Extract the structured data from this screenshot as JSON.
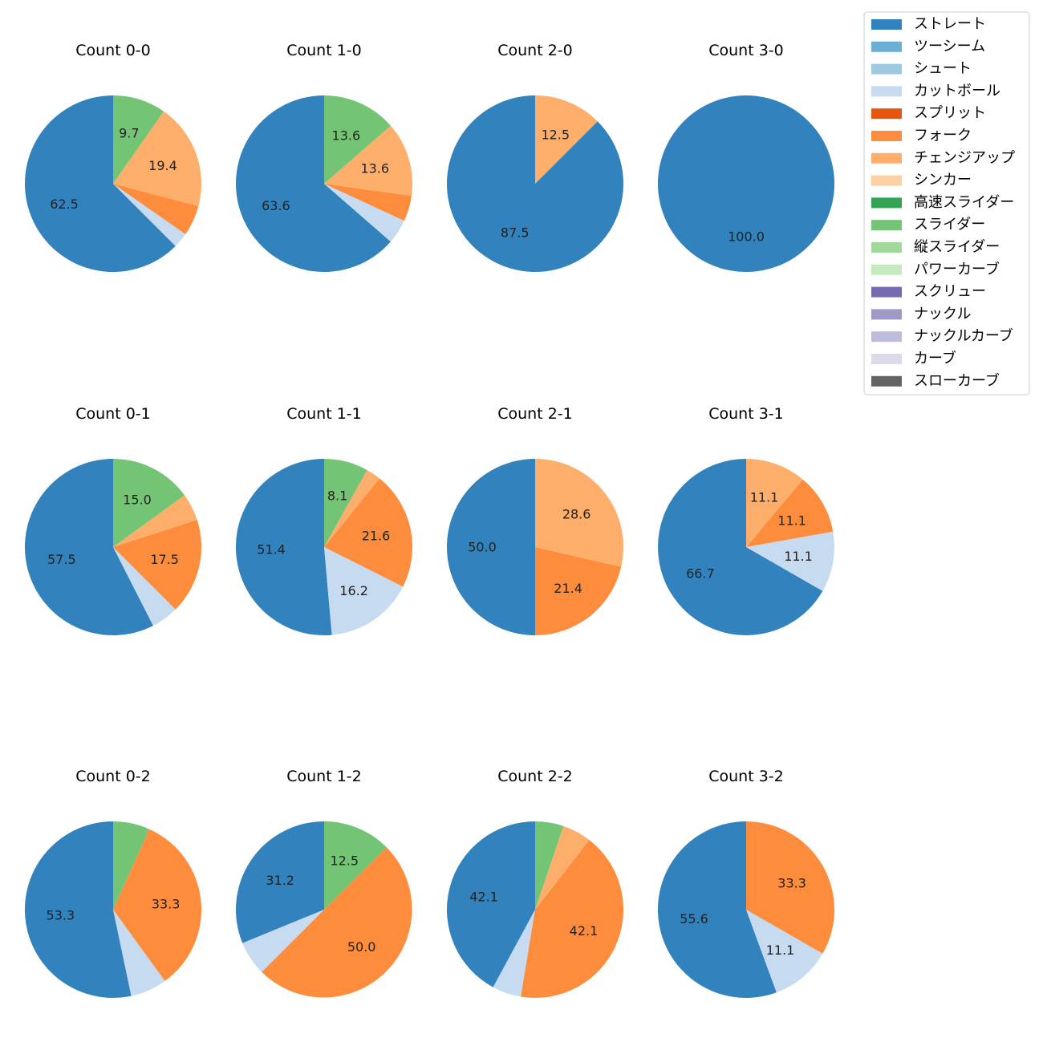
{
  "chart_data": {
    "type": "pie",
    "legend_position": "top-right",
    "legend": [
      {
        "name": "ストレート",
        "color": "#3182bd"
      },
      {
        "name": "ツーシーム",
        "color": "#6baed6"
      },
      {
        "name": "シュート",
        "color": "#9ecae1"
      },
      {
        "name": "カットボール",
        "color": "#c6dbef"
      },
      {
        "name": "スプリット",
        "color": "#e6550d"
      },
      {
        "name": "フォーク",
        "color": "#fd8d3c"
      },
      {
        "name": "チェンジアップ",
        "color": "#fdae6b"
      },
      {
        "name": "シンカー",
        "color": "#fdd0a2"
      },
      {
        "name": "高速スライダー",
        "color": "#31a354"
      },
      {
        "name": "スライダー",
        "color": "#74c476"
      },
      {
        "name": "縦スライダー",
        "color": "#a1d99b"
      },
      {
        "name": "パワーカーブ",
        "color": "#c7e9c0"
      },
      {
        "name": "スクリュー",
        "color": "#756bb1"
      },
      {
        "name": "ナックル",
        "color": "#9e9ac8"
      },
      {
        "name": "ナックルカーブ",
        "color": "#bcbddc"
      },
      {
        "name": "カーブ",
        "color": "#dadaeb"
      },
      {
        "name": "スローカーブ",
        "color": "#636363"
      }
    ],
    "charts": [
      {
        "title": "Count 0-0",
        "slices": [
          {
            "pitch": "ストレート",
            "value": 62.5,
            "label": "62.5"
          },
          {
            "pitch": "カットボール",
            "value": 2.8,
            "label": ""
          },
          {
            "pitch": "フォーク",
            "value": 5.6,
            "label": ""
          },
          {
            "pitch": "チェンジアップ",
            "value": 19.4,
            "label": "19.4"
          },
          {
            "pitch": "スライダー",
            "value": 9.7,
            "label": "9.7"
          }
        ]
      },
      {
        "title": "Count 1-0",
        "slices": [
          {
            "pitch": "ストレート",
            "value": 63.6,
            "label": "63.6"
          },
          {
            "pitch": "カットボール",
            "value": 4.5,
            "label": ""
          },
          {
            "pitch": "フォーク",
            "value": 4.7,
            "label": ""
          },
          {
            "pitch": "チェンジアップ",
            "value": 13.6,
            "label": "13.6"
          },
          {
            "pitch": "スライダー",
            "value": 13.6,
            "label": "13.6"
          }
        ]
      },
      {
        "title": "Count 2-0",
        "slices": [
          {
            "pitch": "ストレート",
            "value": 87.5,
            "label": "87.5"
          },
          {
            "pitch": "チェンジアップ",
            "value": 12.5,
            "label": "12.5"
          }
        ]
      },
      {
        "title": "Count 3-0",
        "slices": [
          {
            "pitch": "ストレート",
            "value": 100.0,
            "label": "100.0"
          }
        ]
      },
      {
        "title": "Count 0-1",
        "slices": [
          {
            "pitch": "ストレート",
            "value": 57.5,
            "label": "57.5"
          },
          {
            "pitch": "カットボール",
            "value": 5.0,
            "label": ""
          },
          {
            "pitch": "フォーク",
            "value": 17.5,
            "label": "17.5"
          },
          {
            "pitch": "チェンジアップ",
            "value": 5.0,
            "label": ""
          },
          {
            "pitch": "スライダー",
            "value": 15.0,
            "label": "15.0"
          }
        ]
      },
      {
        "title": "Count 1-1",
        "slices": [
          {
            "pitch": "ストレート",
            "value": 51.4,
            "label": "51.4"
          },
          {
            "pitch": "カットボール",
            "value": 16.2,
            "label": "16.2"
          },
          {
            "pitch": "フォーク",
            "value": 21.6,
            "label": "21.6"
          },
          {
            "pitch": "チェンジアップ",
            "value": 2.7,
            "label": ""
          },
          {
            "pitch": "スライダー",
            "value": 8.1,
            "label": "8.1"
          }
        ]
      },
      {
        "title": "Count 2-1",
        "slices": [
          {
            "pitch": "ストレート",
            "value": 50.0,
            "label": "50.0"
          },
          {
            "pitch": "フォーク",
            "value": 21.4,
            "label": "21.4"
          },
          {
            "pitch": "チェンジアップ",
            "value": 28.6,
            "label": "28.6"
          }
        ]
      },
      {
        "title": "Count 3-1",
        "slices": [
          {
            "pitch": "ストレート",
            "value": 66.7,
            "label": "66.7"
          },
          {
            "pitch": "カットボール",
            "value": 11.1,
            "label": "11.1"
          },
          {
            "pitch": "フォーク",
            "value": 11.1,
            "label": "11.1"
          },
          {
            "pitch": "チェンジアップ",
            "value": 11.1,
            "label": "11.1"
          }
        ]
      },
      {
        "title": "Count 0-2",
        "slices": [
          {
            "pitch": "ストレート",
            "value": 53.3,
            "label": "53.3"
          },
          {
            "pitch": "カットボール",
            "value": 6.7,
            "label": ""
          },
          {
            "pitch": "フォーク",
            "value": 33.3,
            "label": "33.3"
          },
          {
            "pitch": "スライダー",
            "value": 6.7,
            "label": ""
          }
        ]
      },
      {
        "title": "Count 1-2",
        "slices": [
          {
            "pitch": "ストレート",
            "value": 31.2,
            "label": "31.2"
          },
          {
            "pitch": "カットボール",
            "value": 6.3,
            "label": ""
          },
          {
            "pitch": "フォーク",
            "value": 50.0,
            "label": "50.0"
          },
          {
            "pitch": "スライダー",
            "value": 12.5,
            "label": "12.5"
          }
        ]
      },
      {
        "title": "Count 2-2",
        "slices": [
          {
            "pitch": "ストレート",
            "value": 42.1,
            "label": "42.1"
          },
          {
            "pitch": "カットボール",
            "value": 5.3,
            "label": ""
          },
          {
            "pitch": "フォーク",
            "value": 42.1,
            "label": "42.1"
          },
          {
            "pitch": "チェンジアップ",
            "value": 5.3,
            "label": ""
          },
          {
            "pitch": "スライダー",
            "value": 5.2,
            "label": ""
          }
        ]
      },
      {
        "title": "Count 3-2",
        "slices": [
          {
            "pitch": "ストレート",
            "value": 55.6,
            "label": "55.6"
          },
          {
            "pitch": "カットボール",
            "value": 11.1,
            "label": "11.1"
          },
          {
            "pitch": "フォーク",
            "value": 33.3,
            "label": "33.3"
          }
        ]
      }
    ]
  }
}
